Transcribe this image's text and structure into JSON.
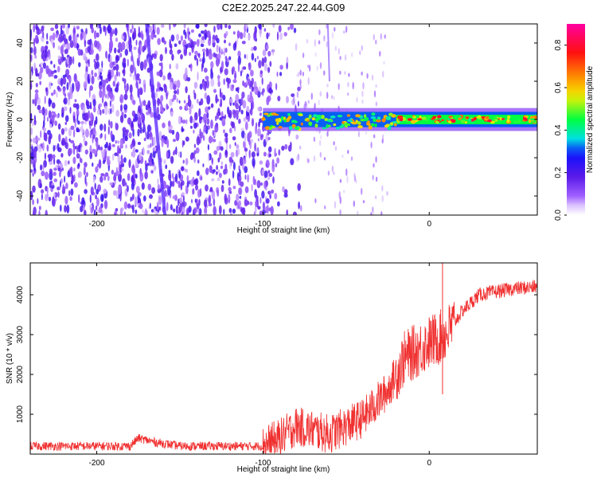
{
  "title": "C2E2.2025.247.22.44.G09",
  "chart_data": [
    {
      "type": "heatmap",
      "name": "spectrogram",
      "xlabel": "Height of straight line (km)",
      "ylabel": "Frequency (Hz)",
      "xlim": [
        -240,
        65
      ],
      "ylim": [
        -50,
        50
      ],
      "xticks": [
        -200,
        -100,
        0
      ],
      "yticks": [
        -40,
        -20,
        0,
        20,
        40
      ],
      "colorbar": {
        "label": "Normalized spectral amplitude",
        "range": [
          0.0,
          0.9
        ],
        "ticks": [
          0.0,
          0.2,
          0.4,
          0.6,
          0.8
        ]
      },
      "features": [
        {
          "name": "noise-region",
          "x_range": [
            -240,
            -80
          ],
          "level": 0.12
        },
        {
          "name": "diagonal-streak",
          "x_range": [
            -170,
            -157
          ],
          "level": 0.2
        },
        {
          "name": "sparse-region",
          "x_range": [
            -80,
            -95
          ],
          "level": 0.05
        },
        {
          "name": "carrier-band",
          "x_range": [
            -100,
            65
          ],
          "freq_center": 0,
          "freq_halfwidth": 5,
          "level_start": 0.35,
          "level_end": 0.45,
          "peak": 0.9
        }
      ]
    },
    {
      "type": "line",
      "name": "snr",
      "xlabel": "Height of straight line (km)",
      "ylabel": "SNR (10 * v/v)",
      "xlim": [
        -240,
        65
      ],
      "ylim": [
        0,
        4800
      ],
      "xticks": [
        -200,
        -100,
        0
      ],
      "yticks": [
        1000,
        2000,
        3000,
        4000
      ],
      "color": "#f03030",
      "envelope": [
        {
          "x": -240,
          "y": 200
        },
        {
          "x": -180,
          "y": 200
        },
        {
          "x": -175,
          "y": 400
        },
        {
          "x": -165,
          "y": 300
        },
        {
          "x": -150,
          "y": 200
        },
        {
          "x": -100,
          "y": 200
        },
        {
          "x": -90,
          "y": 400
        },
        {
          "x": -80,
          "y": 700
        },
        {
          "x": -60,
          "y": 500
        },
        {
          "x": -40,
          "y": 900
        },
        {
          "x": -25,
          "y": 1600
        },
        {
          "x": -20,
          "y": 2000
        },
        {
          "x": -15,
          "y": 2400
        },
        {
          "x": 0,
          "y": 2800
        },
        {
          "x": 10,
          "y": 3000
        },
        {
          "x": 20,
          "y": 3600
        },
        {
          "x": 30,
          "y": 4000
        },
        {
          "x": 50,
          "y": 4150
        },
        {
          "x": 65,
          "y": 4200
        }
      ]
    }
  ]
}
